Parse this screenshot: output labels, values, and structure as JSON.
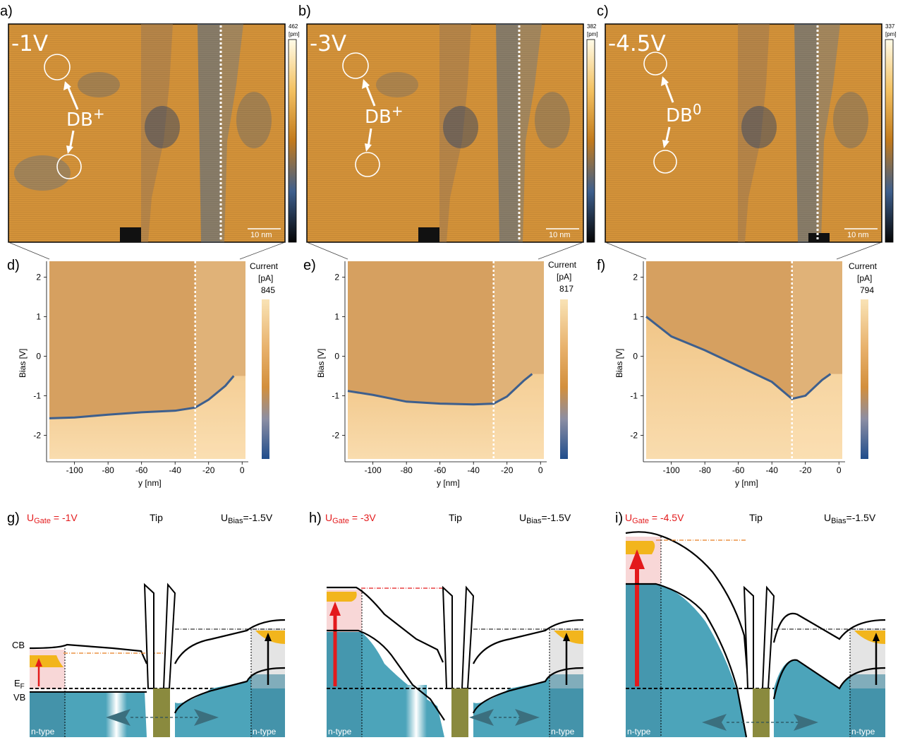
{
  "figure": {
    "panels": [
      {
        "label": "a)",
        "stm_bias": "-1V",
        "db_label": "DB",
        "db_charge": "+",
        "cbar_max": "462",
        "cbar_unit": "[pm]",
        "scalebar": "10 nm"
      },
      {
        "label": "b)",
        "stm_bias": "-3V",
        "db_label": "DB",
        "db_charge": "+",
        "cbar_max": "382",
        "cbar_unit": "[pm]",
        "scalebar": "10 nm"
      },
      {
        "label": "c)",
        "stm_bias": "-4.5V",
        "db_label": "DB",
        "db_charge": "0",
        "cbar_max": "337",
        "cbar_unit": "[pm]",
        "scalebar": "10 nm"
      }
    ],
    "maps": [
      {
        "label": "d)",
        "current_title": "Current",
        "current_unit": "[pA]",
        "current_max": "845",
        "xlabel": "y [nm]",
        "ylabel": "Bias [V]",
        "xticks": [
          "-100",
          "-80",
          "-60",
          "-40",
          "-20",
          "0"
        ],
        "yticks": [
          "2",
          "1",
          "0",
          "-1",
          "-2"
        ]
      },
      {
        "label": "e)",
        "current_title": "Current",
        "current_unit": "[pA]",
        "current_max": "817",
        "xlabel": "y [nm]",
        "ylabel": "Bias [V]",
        "xticks": [
          "-100",
          "-80",
          "-60",
          "-40",
          "-20",
          "0"
        ],
        "yticks": [
          "2",
          "1",
          "0",
          "-1",
          "-2"
        ]
      },
      {
        "label": "f)",
        "current_title": "Current",
        "current_unit": "[pA]",
        "current_max": "794",
        "xlabel": "y [nm]",
        "ylabel": "Bias [V]",
        "xticks": [
          "-100",
          "-80",
          "-60",
          "-40",
          "-20",
          "0"
        ],
        "yticks": [
          "2",
          "1",
          "0",
          "-1",
          "-2"
        ]
      }
    ],
    "bands": [
      {
        "label": "g)",
        "gate_label": "U",
        "gate_sub": "Gate",
        "gate_value": " = -1V",
        "tip": "Tip",
        "bias_label": "U",
        "bias_sub": "Bias",
        "bias_value": "=-1.5V",
        "cb": "CB",
        "ef": "E",
        "ef_sub": "F",
        "vb": "VB",
        "ntype_left": "n-type",
        "ntype_right": "n-type"
      },
      {
        "label": "h)",
        "gate_label": "U",
        "gate_sub": "Gate",
        "gate_value": " = -3V",
        "tip": "Tip",
        "bias_label": "U",
        "bias_sub": "Bias",
        "bias_value": "=-1.5V",
        "ntype_left": "n-type",
        "ntype_right": "n-type"
      },
      {
        "label": "i)",
        "gate_label": "U",
        "gate_sub": "Gate",
        "gate_value": " = -4.5V",
        "tip": "Tip",
        "bias_label": "U",
        "bias_sub": "Bias",
        "bias_value": "=-1.5V",
        "ntype_left": "n-type",
        "ntype_right": "n-type"
      }
    ],
    "chart_data": [
      {
        "type": "heatmap",
        "title": "",
        "xlabel": "y [nm]",
        "ylabel": "Bias [V]",
        "xlim": [
          -115,
          2
        ],
        "ylim": [
          -2.6,
          2.4
        ],
        "colorbar": {
          "label": "Current [pA]",
          "max": 845
        },
        "series": [
          {
            "name": "",
            "x": [
              -115,
              -100,
              -80,
              -60,
              -40,
              -28,
              -20,
              -10,
              -5
            ],
            "y": [
              -1.57,
              -1.55,
              -1.48,
              -1.42,
              -1.38,
              -1.3,
              -1.1,
              -0.75,
              -0.5
            ]
          }
        ]
      },
      {
        "type": "heatmap",
        "title": "",
        "xlabel": "y [nm]",
        "ylabel": "Bias [V]",
        "xlim": [
          -115,
          2
        ],
        "ylim": [
          -2.6,
          2.4
        ],
        "colorbar": {
          "label": "Current [pA]",
          "max": 817
        },
        "series": [
          {
            "name": "",
            "x": [
              -115,
              -100,
              -80,
              -60,
              -40,
              -28,
              -20,
              -10,
              -5
            ],
            "y": [
              -0.88,
              -0.98,
              -1.15,
              -1.2,
              -1.22,
              -1.2,
              -1.02,
              -0.62,
              -0.45
            ]
          }
        ]
      },
      {
        "type": "heatmap",
        "title": "",
        "xlabel": "y [nm]",
        "ylabel": "Bias [V]",
        "xlim": [
          -115,
          2
        ],
        "ylim": [
          -2.6,
          2.4
        ],
        "colorbar": {
          "label": "Current [pA]",
          "max": 794
        },
        "series": [
          {
            "name": "",
            "x": [
              -115,
              -100,
              -80,
              -60,
              -40,
              -28,
              -20,
              -10,
              -5
            ],
            "y": [
              1.0,
              0.5,
              0.15,
              -0.25,
              -0.65,
              -1.08,
              -1.0,
              -0.6,
              -0.45
            ]
          }
        ]
      }
    ],
    "colors": {
      "stm_gold": "#d9962f",
      "stm_blue": "#3b5a86",
      "map_bg": "#d8a05c",
      "band_teal": "#4ca4ba",
      "cb_gold": "#f2b51c",
      "red": "#e31a1c"
    }
  }
}
